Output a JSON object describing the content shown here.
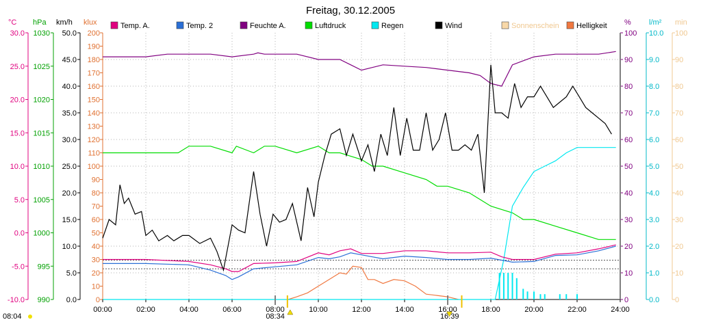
{
  "chart_data": {
    "type": "line",
    "title": "Freitag, 30.12.2005",
    "x_axis": {
      "ticks": [
        "00:00",
        "02:00",
        "04:00",
        "06:00",
        "08:00",
        "10:00",
        "12:00",
        "14:00",
        "16:00",
        "18:00",
        "20:00",
        "22:00",
        "24:00"
      ],
      "range_hours": [
        0,
        24
      ]
    },
    "axes": [
      {
        "id": "temp",
        "unit": "°C",
        "range": [
          -10,
          30
        ],
        "ticks": [
          "30.0",
          "25.0",
          "20.0",
          "15.0",
          "10.0",
          "5.0",
          "0.0",
          "-5.0",
          "-10.0"
        ],
        "color": "#e0007f"
      },
      {
        "id": "pressure",
        "unit": "hPa",
        "range": [
          990,
          1030
        ],
        "ticks": [
          "1030",
          "1025",
          "1020",
          "1015",
          "1010",
          "1005",
          "1000",
          "995",
          "990"
        ],
        "color": "#00a000"
      },
      {
        "id": "wind",
        "unit": "km/h",
        "range": [
          0,
          50
        ],
        "ticks": [
          "50.0",
          "45.0",
          "40.0",
          "35.0",
          "30.0",
          "25.0",
          "20.0",
          "15.0",
          "10.0",
          "5.0",
          "0.0"
        ],
        "color": "#000000"
      },
      {
        "id": "light",
        "unit": "klux",
        "range": [
          0,
          200
        ],
        "ticks": [
          "200",
          "190",
          "180",
          "170",
          "160",
          "150",
          "140",
          "130",
          "120",
          "110",
          "100",
          "90",
          "80",
          "70",
          "60",
          "50",
          "40",
          "30",
          "20",
          "10",
          "0"
        ],
        "color": "#e07030"
      },
      {
        "id": "humidity",
        "unit": "%",
        "range": [
          0,
          100
        ],
        "ticks": [
          "100",
          "90",
          "80",
          "70",
          "60",
          "50",
          "40",
          "30",
          "20",
          "10",
          "0"
        ],
        "color": "#800080"
      },
      {
        "id": "rain",
        "unit": "l/m²",
        "range": [
          0,
          10
        ],
        "ticks": [
          "10.0",
          "9.0",
          "8.0",
          "7.0",
          "6.0",
          "5.0",
          "4.0",
          "3.0",
          "2.0",
          "1.0",
          "0.0"
        ],
        "color": "#00c8d8"
      },
      {
        "id": "sunshine",
        "unit": "min",
        "range": [
          0,
          100
        ],
        "ticks": [
          "100",
          "90",
          "80",
          "70",
          "60",
          "50",
          "40",
          "30",
          "20",
          "10",
          "0"
        ],
        "color": "#f0d8a0"
      }
    ],
    "legend": [
      {
        "label": "Temp. A.",
        "color": "#e0007f"
      },
      {
        "label": "Temp. 2",
        "color": "#2a6fd6"
      },
      {
        "label": "Feuchte A.",
        "color": "#800080"
      },
      {
        "label": "Luftdruck",
        "color": "#00dd00"
      },
      {
        "label": "Regen",
        "color": "#00e8f0"
      },
      {
        "label": "Wind",
        "color": "#000000"
      },
      {
        "label": "Sonnenschein",
        "color": "#f8d8a8"
      },
      {
        "label": "Helligkeit",
        "color": "#f07840"
      }
    ],
    "series": [
      {
        "name": "Temp. A.",
        "axis": "temp",
        "x": [
          0,
          2,
          4,
          5,
          5.7,
          6,
          6.3,
          7,
          8,
          9,
          10,
          10.5,
          11,
          11.5,
          12,
          13,
          14,
          15,
          16,
          17,
          18,
          18.5,
          19,
          20,
          21,
          22,
          23,
          23.8
        ],
        "y": [
          -4,
          -4,
          -4.3,
          -4.8,
          -5.4,
          -5.8,
          -5.8,
          -4.6,
          -4.5,
          -4.3,
          -3,
          -3.3,
          -2.7,
          -2.4,
          -3.1,
          -3.1,
          -2.7,
          -2.7,
          -3,
          -3,
          -2.9,
          -3.6,
          -4,
          -4,
          -3.2,
          -3,
          -2.4,
          -1.8
        ]
      },
      {
        "name": "Temp. 2",
        "axis": "temp",
        "x": [
          0,
          2,
          4,
          5,
          5.7,
          6,
          6.3,
          7,
          8,
          9,
          10,
          10.5,
          11,
          11.5,
          12,
          13,
          14,
          15,
          16,
          17,
          18,
          18.5,
          19,
          20,
          21,
          22,
          23,
          23.8
        ],
        "y": [
          -4.6,
          -4.6,
          -4.8,
          -5.6,
          -6.4,
          -7,
          -6.6,
          -5.4,
          -5.1,
          -4.8,
          -3.7,
          -3.9,
          -3.6,
          -3,
          -3.3,
          -3.9,
          -3.5,
          -3.7,
          -4,
          -4,
          -3.8,
          -4.1,
          -4.4,
          -4.3,
          -3.4,
          -3.3,
          -2.7,
          -2
        ]
      },
      {
        "name": "Feuchte A.",
        "axis": "humidity",
        "x": [
          0,
          2,
          3,
          5,
          6,
          7,
          7.2,
          7.5,
          8,
          9,
          10,
          10.5,
          11,
          11.5,
          12,
          12.5,
          13,
          14,
          15,
          16,
          17,
          17.5,
          18,
          18.5,
          19,
          20,
          21,
          22,
          23,
          23.8
        ],
        "y": [
          91,
          91,
          92,
          92,
          91,
          92,
          92.5,
          92,
          92,
          92,
          90,
          90,
          90,
          88,
          86,
          87,
          88,
          87.5,
          87,
          86,
          85,
          84,
          81,
          80,
          88,
          91,
          92,
          92,
          92,
          93
        ]
      },
      {
        "name": "Luftdruck",
        "axis": "pressure",
        "x": [
          0,
          1,
          2,
          3,
          3.5,
          4,
          5,
          6,
          6.2,
          7,
          7.5,
          8,
          9,
          10,
          10.5,
          11,
          12,
          12.5,
          13,
          14,
          15,
          15.5,
          16,
          17,
          17.5,
          18,
          19,
          19.5,
          20,
          21,
          22,
          23,
          23.8
        ],
        "y": [
          1012,
          1012,
          1012,
          1012,
          1012,
          1013,
          1013,
          1012,
          1013,
          1012,
          1013,
          1013,
          1012,
          1013,
          1012,
          1012,
          1011,
          1010,
          1010,
          1009,
          1008,
          1007,
          1007,
          1006,
          1005,
          1004,
          1003,
          1002,
          1002,
          1001,
          1000,
          999,
          999
        ]
      },
      {
        "name": "Wind",
        "axis": "wind",
        "x": [
          0,
          0.3,
          0.6,
          0.8,
          1,
          1.2,
          1.5,
          1.8,
          2,
          2.3,
          2.6,
          3,
          3.3,
          3.7,
          4,
          4.5,
          5,
          5.3,
          5.6,
          6,
          6.3,
          6.6,
          7,
          7.3,
          7.6,
          7.9,
          8.2,
          8.5,
          8.8,
          9.2,
          9.5,
          9.8,
          10,
          10.3,
          10.6,
          11,
          11.3,
          11.6,
          12,
          12.3,
          12.6,
          12.9,
          13.2,
          13.5,
          13.8,
          14.1,
          14.4,
          14.7,
          15,
          15.3,
          15.6,
          15.9,
          16.2,
          16.5,
          16.8,
          17.1,
          17.4,
          17.7,
          18,
          18.2,
          18.5,
          18.8,
          19.1,
          19.4,
          19.7,
          20,
          20.3,
          20.6,
          20.9,
          21.2,
          21.5,
          21.8,
          22.1,
          22.4,
          22.7,
          23,
          23.3,
          23.6
        ],
        "y": [
          11.5,
          15,
          14,
          21.5,
          18,
          19,
          16,
          16.5,
          12,
          13,
          11,
          12,
          11,
          12,
          12,
          10.5,
          11.5,
          9,
          5.5,
          14,
          13,
          12.5,
          24,
          16,
          10,
          16,
          14.5,
          15,
          18,
          11,
          21,
          15.5,
          22,
          27,
          31,
          32,
          27,
          31,
          26,
          29,
          24,
          31,
          27,
          36,
          27,
          34,
          28,
          28,
          35,
          28,
          30,
          35,
          28,
          28,
          29,
          28,
          31,
          20,
          44,
          35,
          35,
          34,
          40.5,
          36,
          38,
          38,
          40,
          38,
          36,
          37,
          38,
          40,
          38,
          36,
          35,
          34,
          33,
          31
        ]
      },
      {
        "name": "Regen",
        "axis": "rain",
        "x": [
          0,
          18.2,
          18.6,
          19,
          19.5,
          20,
          20.5,
          21,
          21.5,
          22,
          23,
          23.8
        ],
        "y": [
          0,
          0,
          1.5,
          3.5,
          4.2,
          4.8,
          5,
          5.2,
          5.5,
          5.7,
          5.7,
          5.7
        ]
      },
      {
        "name": "Helligkeit",
        "axis": "light",
        "x": [
          8.6,
          9,
          9.5,
          10,
          10.5,
          11,
          11.3,
          11.6,
          12,
          12.3,
          12.6,
          13,
          13.5,
          14,
          14.5,
          15,
          15.5,
          16,
          16.5
        ],
        "y": [
          0,
          2,
          5,
          10,
          15,
          20,
          19,
          25,
          24,
          15,
          15,
          12,
          15,
          14,
          10,
          4,
          3,
          2,
          0
        ]
      }
    ],
    "rain_bars": {
      "axis": "rain",
      "x": [
        18.4,
        18.6,
        18.8,
        19,
        19.2,
        19.5,
        19.7,
        20,
        20.3,
        20.5,
        21.2,
        21.5,
        22
      ],
      "y": [
        1,
        1,
        1,
        1,
        0.8,
        0.4,
        0.3,
        0.3,
        0.2,
        0.2,
        0.2,
        0.2,
        0.2
      ]
    },
    "markers": {
      "corner_time": "08:04",
      "sunrise": "08:34",
      "sunset": "16:39"
    }
  }
}
